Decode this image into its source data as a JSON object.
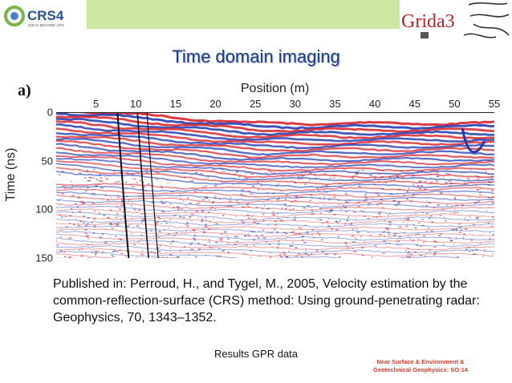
{
  "header": {
    "left_logo_text": "CRS4",
    "left_logo_tagline": "IDEAS BECOME LIFE",
    "right_logo_text": "Grida3",
    "accent_green": "#cde6a3"
  },
  "slide": {
    "title": "Time domain imaging",
    "panel_label": "a)"
  },
  "chart_data": {
    "type": "heatmap",
    "title": "",
    "xlabel": "Position (m)",
    "ylabel": "Time (ns)",
    "xlim": [
      0,
      55
    ],
    "ylim": [
      150,
      0
    ],
    "x_ticks": [
      "5",
      "10",
      "15",
      "20",
      "25",
      "30",
      "35",
      "40",
      "45",
      "50",
      "55"
    ],
    "y_ticks": [
      "0",
      "50",
      "100",
      "150"
    ],
    "colors": {
      "positive": "#d8202a",
      "negative": "#2038b0",
      "neutral": "#ffffff"
    }
  },
  "caption": {
    "text": "Published in: Perroud, H., and Tygel, M., 2005, Velocity estimation by the common-reflection-surface (CRS) method: Using ground-penetrating radar: Geophysics, 70, 1343–1352.",
    "subcaption": "Results GPR data"
  },
  "footer": {
    "line1": "Near Surface & Environment &",
    "line2": "Geotechnical Geophysics: SO-14"
  }
}
